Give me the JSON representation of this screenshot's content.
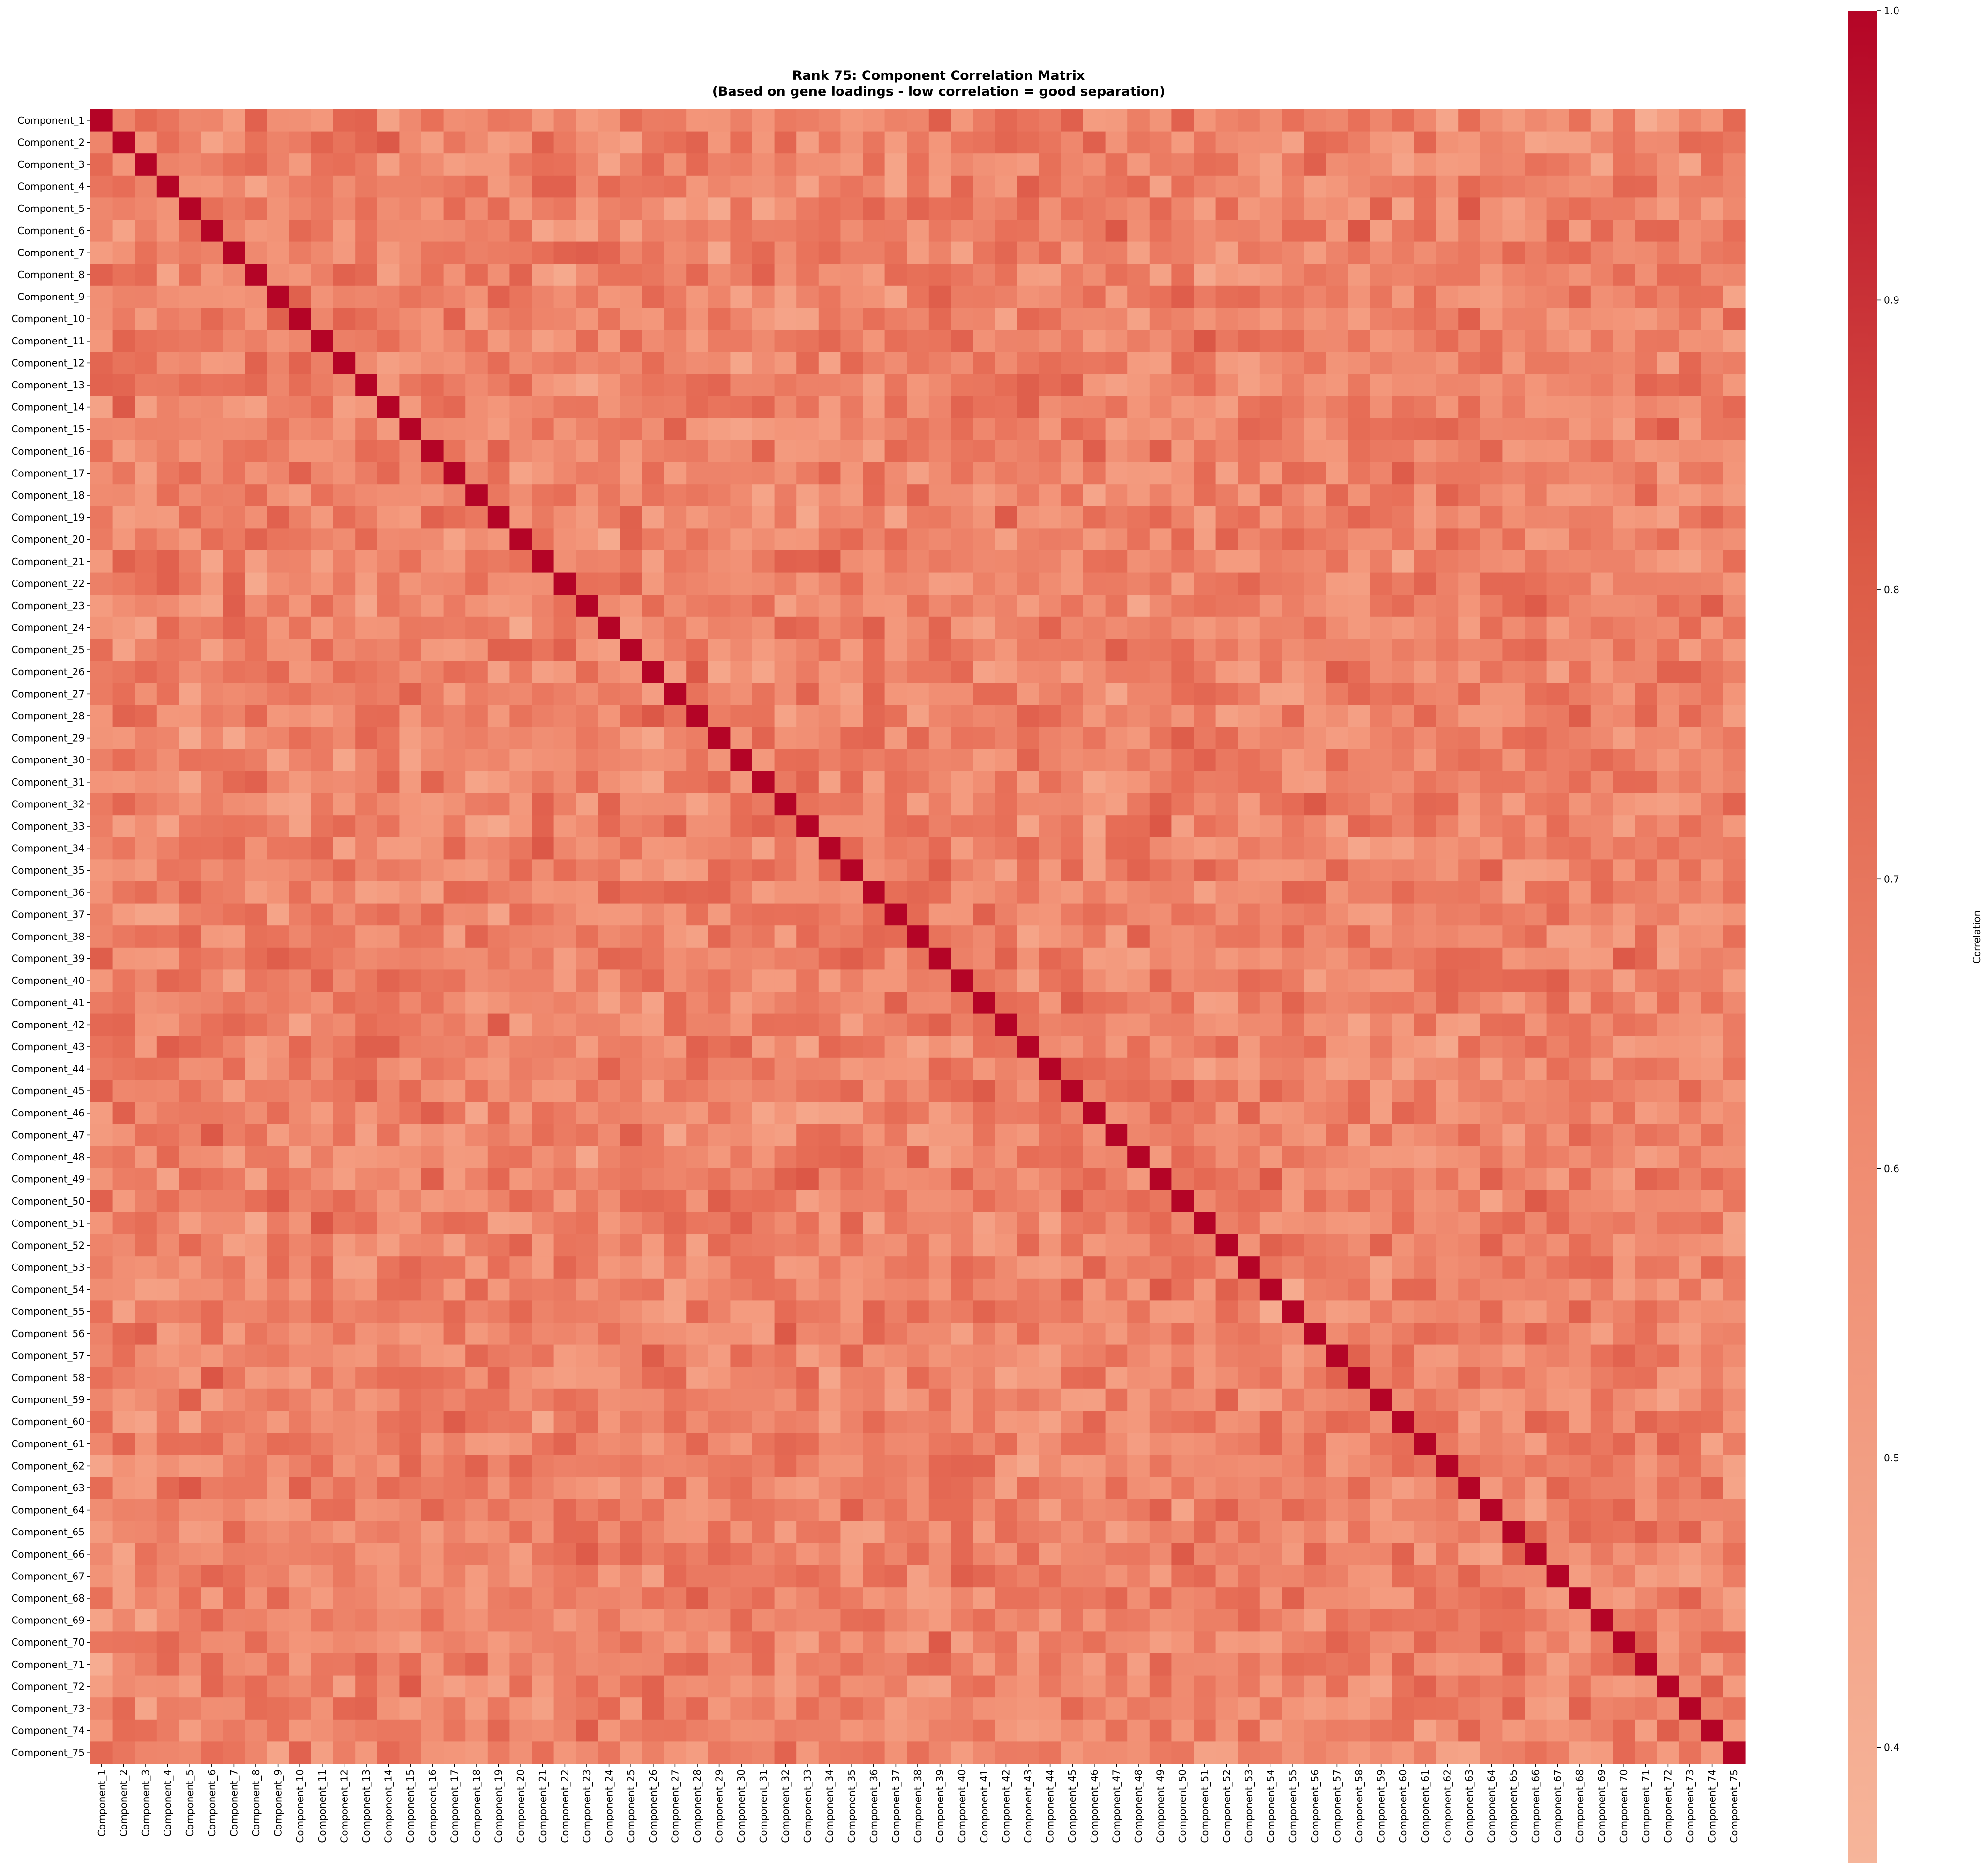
{
  "chart_data": {
    "type": "heatmap",
    "title": "Rank 75: Component Correlation Matrix",
    "subtitle": "(Based on gene loadings - low correlation = good separation)",
    "labels_count": 75,
    "label_prefix": "Component_",
    "row_labels": "Component_1 … Component_75",
    "col_labels": "Component_1 … Component_75",
    "diagonal_value": 1.0,
    "off_diagonal_range": [
      0.38,
      0.85
    ],
    "off_diagonal_typical": 0.62,
    "colormap": "coolwarm (red half)",
    "colorbar": {
      "label": "Correlation",
      "min": 0.36,
      "max": 1.0,
      "ticks": [
        "0.4",
        "0.5",
        "0.6",
        "0.7",
        "0.8",
        "0.9",
        "1.0"
      ],
      "tick_values": [
        0.4,
        0.5,
        0.6,
        0.7,
        0.8,
        0.9,
        1.0
      ]
    },
    "colors": {
      "high": "#b40426",
      "mid": "#e46a52",
      "low": "#f6b59a"
    },
    "grid": false,
    "legend": "colorbar-right"
  }
}
